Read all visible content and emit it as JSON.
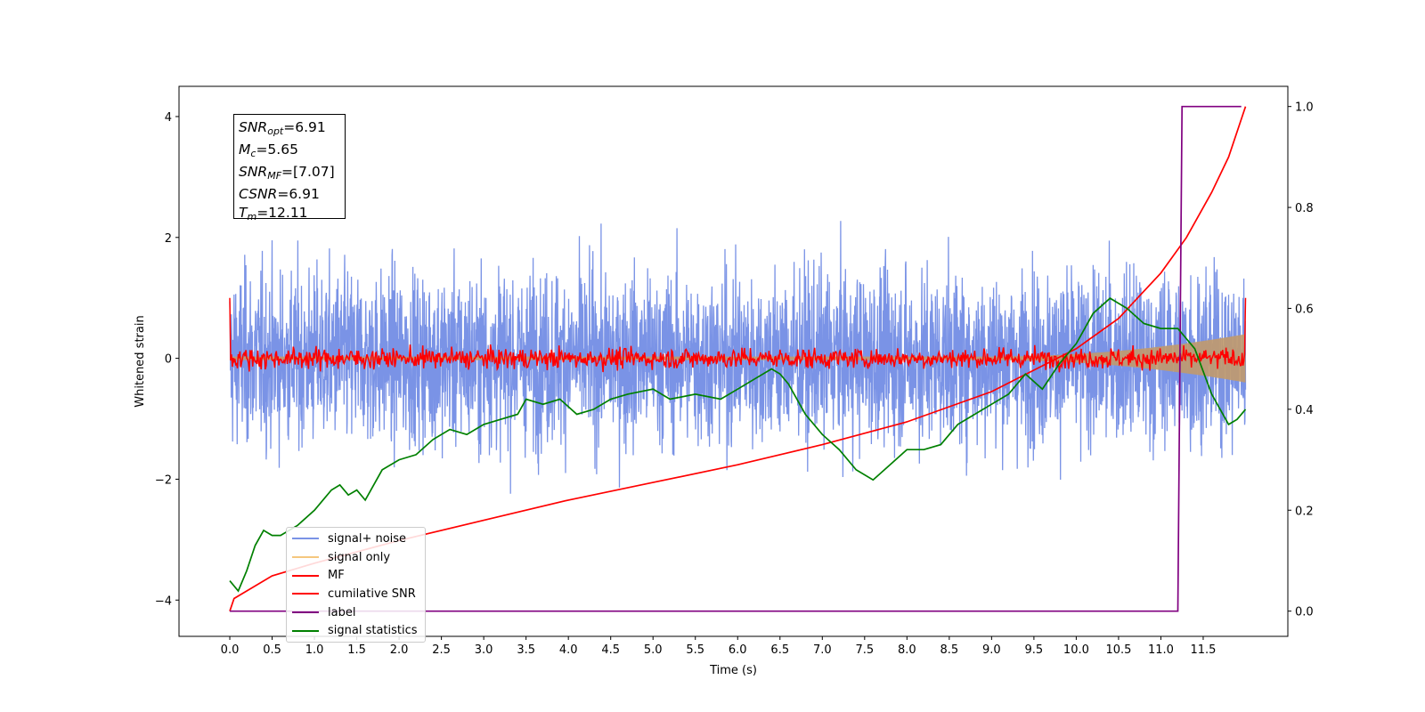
{
  "chart_data": {
    "type": "line",
    "xlabel": "Time (s)",
    "ylabel": "Whitened strain",
    "xlim": [
      -0.6,
      12.5
    ],
    "ylim": [
      -4.6,
      4.5
    ],
    "ylim_right": [
      -0.05,
      1.04
    ],
    "x_ticks": [
      "0.0",
      "0.5",
      "1.0",
      "1.5",
      "2.0",
      "2.5",
      "3.0",
      "3.5",
      "4.0",
      "4.5",
      "5.0",
      "5.5",
      "6.0",
      "6.5",
      "7.0",
      "7.5",
      "8.0",
      "8.5",
      "9.0",
      "9.5",
      "10.0",
      "10.5",
      "11.0",
      "11.5"
    ],
    "y_ticks_left": [
      "4",
      "2",
      "0",
      "−2",
      "−4"
    ],
    "y_ticks_right": [
      "1.0",
      "0.8",
      "0.6",
      "0.4",
      "0.2",
      "0.0"
    ],
    "annotation": {
      "snr_opt": {
        "base": "SNR",
        "sub": "opt",
        "value": "=6.91"
      },
      "mc": {
        "base": "M",
        "sub": "c",
        "value": "=5.65"
      },
      "snr_mf": {
        "base": "SNR",
        "sub": "MF",
        "value": "=[7.07]"
      },
      "csnr": {
        "base": "CSNR",
        "sub": "",
        "value": "=6.91"
      },
      "tm": {
        "base": "T",
        "sub": "m",
        "value": "=12.11"
      }
    },
    "series": [
      {
        "name": "signal+ noise",
        "color": "#7a93e6",
        "axis": "left",
        "kind": "noise",
        "mean": 0.0,
        "std": 1.0,
        "x_range": [
          0.0,
          12.0
        ]
      },
      {
        "name": "signal only",
        "color": "#f5c77e",
        "axis": "left",
        "kind": "chirp_envelope",
        "amplitude_end": 0.4,
        "x_range": [
          0.0,
          12.0
        ]
      },
      {
        "name": "MF",
        "color": "#ff0000",
        "axis": "left",
        "kind": "noise",
        "mean": 0.0,
        "std": 0.12,
        "x_range": [
          0.0,
          12.0
        ]
      },
      {
        "name": "cumilative SNR",
        "color": "#ff0000",
        "axis": "right",
        "x": [
          0.0,
          0.05,
          0.5,
          1.0,
          2.0,
          3.0,
          4.0,
          5.0,
          6.0,
          7.0,
          8.0,
          9.0,
          10.0,
          10.5,
          11.0,
          11.3,
          11.6,
          11.8,
          12.0
        ],
        "values": [
          0.0,
          0.025,
          0.07,
          0.095,
          0.14,
          0.18,
          0.22,
          0.255,
          0.29,
          0.33,
          0.375,
          0.435,
          0.52,
          0.58,
          0.67,
          0.74,
          0.83,
          0.9,
          1.0
        ]
      },
      {
        "name": "label",
        "color": "#800080",
        "axis": "right",
        "x": [
          0.0,
          11.2,
          11.25,
          11.95
        ],
        "values": [
          0.0,
          0.0,
          1.0,
          1.0
        ]
      },
      {
        "name": "signal statistics",
        "color": "#008000",
        "axis": "right",
        "x": [
          0.0,
          0.1,
          0.2,
          0.3,
          0.4,
          0.5,
          0.6,
          0.8,
          1.0,
          1.1,
          1.2,
          1.3,
          1.4,
          1.5,
          1.6,
          1.8,
          2.0,
          2.2,
          2.4,
          2.6,
          2.8,
          3.0,
          3.2,
          3.4,
          3.5,
          3.7,
          3.9,
          4.1,
          4.3,
          4.5,
          4.7,
          5.0,
          5.2,
          5.5,
          5.8,
          6.0,
          6.2,
          6.4,
          6.5,
          6.6,
          6.8,
          7.0,
          7.2,
          7.4,
          7.6,
          7.8,
          8.0,
          8.2,
          8.4,
          8.6,
          8.8,
          9.0,
          9.2,
          9.4,
          9.6,
          9.8,
          10.0,
          10.2,
          10.4,
          10.6,
          10.8,
          11.0,
          11.2,
          11.4,
          11.6,
          11.8,
          11.9,
          12.0
        ],
        "values": [
          0.06,
          0.04,
          0.08,
          0.13,
          0.16,
          0.15,
          0.15,
          0.17,
          0.2,
          0.22,
          0.24,
          0.25,
          0.23,
          0.24,
          0.22,
          0.28,
          0.3,
          0.31,
          0.34,
          0.36,
          0.35,
          0.37,
          0.38,
          0.39,
          0.42,
          0.41,
          0.42,
          0.39,
          0.4,
          0.42,
          0.43,
          0.44,
          0.42,
          0.43,
          0.42,
          0.44,
          0.46,
          0.48,
          0.47,
          0.45,
          0.39,
          0.35,
          0.32,
          0.28,
          0.26,
          0.29,
          0.32,
          0.32,
          0.33,
          0.37,
          0.39,
          0.41,
          0.43,
          0.47,
          0.44,
          0.49,
          0.53,
          0.59,
          0.62,
          0.6,
          0.57,
          0.56,
          0.56,
          0.52,
          0.43,
          0.37,
          0.38,
          0.4
        ]
      }
    ]
  }
}
